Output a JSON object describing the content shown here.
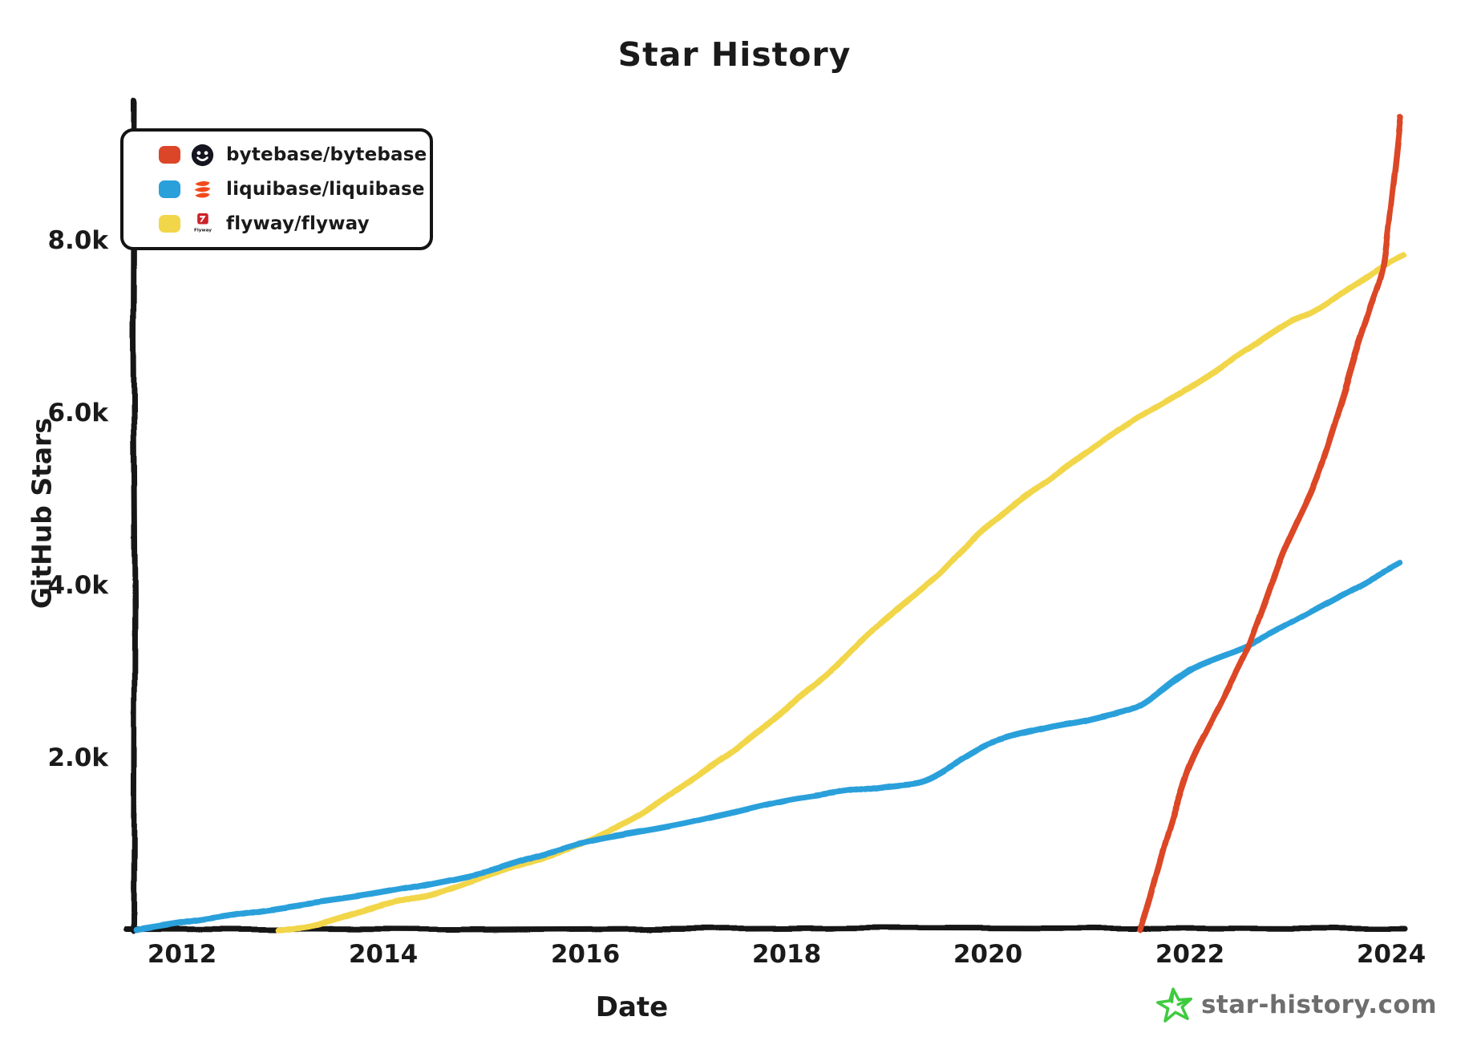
{
  "title": "Star History",
  "y_axis": {
    "label": "GitHub Stars",
    "ticks": [
      "8.0k",
      "6.0k",
      "4.0k",
      "2.0k"
    ],
    "tick_values": [
      8000,
      6000,
      4000,
      2000
    ]
  },
  "x_axis": {
    "label": "Date",
    "ticks": [
      "2012",
      "2014",
      "2016",
      "2018",
      "2020",
      "2022",
      "2024"
    ],
    "tick_values": [
      2012,
      2014,
      2016,
      2018,
      2020,
      2022,
      2024
    ]
  },
  "legend": [
    {
      "repo": "bytebase/bytebase",
      "color": "#dc4628",
      "icon": "bytebase-avatar"
    },
    {
      "repo": "liquibase/liquibase",
      "color": "#2aa0db",
      "icon": "liquibase-logo"
    },
    {
      "repo": "flyway/flyway",
      "color": "#f2d64a",
      "icon": "flyway-logo",
      "caption": "Flyway"
    }
  ],
  "footer": {
    "site": "star-history.com",
    "star_color": "#3ecb3e",
    "text_color": "#6e6e6e"
  },
  "colors": {
    "bytebase": "#dc4628",
    "liquibase": "#2aa0db",
    "flyway": "#f2d64a",
    "axis": "#141414"
  },
  "chart_data": {
    "type": "line",
    "title": "Star History",
    "xlabel": "Date",
    "ylabel": "GitHub Stars",
    "xlim": [
      2011.3,
      2024.25
    ],
    "ylim": [
      0,
      9590
    ],
    "grid": false,
    "legend_position": "top-left",
    "series": [
      {
        "name": "bytebase/bytebase",
        "color": "#dc4628",
        "points": [
          [
            2021.51,
            0
          ],
          [
            2021.6,
            350
          ],
          [
            2021.78,
            1100
          ],
          [
            2022.0,
            1900
          ],
          [
            2022.3,
            2620
          ],
          [
            2022.6,
            3340
          ],
          [
            2022.92,
            4360
          ],
          [
            2023.21,
            5100
          ],
          [
            2023.36,
            5570
          ],
          [
            2023.6,
            6500
          ],
          [
            2023.8,
            7250
          ],
          [
            2023.92,
            7680
          ],
          [
            2024.0,
            8450
          ],
          [
            2024.09,
            9430
          ]
        ]
      },
      {
        "name": "liquibase/liquibase",
        "color": "#2aa0db",
        "points": [
          [
            2011.55,
            0
          ],
          [
            2012,
            85
          ],
          [
            2012.5,
            170
          ],
          [
            2013,
            260
          ],
          [
            2014,
            430
          ],
          [
            2015,
            670
          ],
          [
            2016,
            1010
          ],
          [
            2017,
            1230
          ],
          [
            2018,
            1500
          ],
          [
            2019,
            1670
          ],
          [
            2019.4,
            1750
          ],
          [
            2020,
            2150
          ],
          [
            2020.6,
            2340
          ],
          [
            2021,
            2430
          ],
          [
            2021.5,
            2600
          ],
          [
            2022,
            3020
          ],
          [
            2022.6,
            3310
          ],
          [
            2023.24,
            3710
          ],
          [
            2023.7,
            4000
          ],
          [
            2024.09,
            4250
          ]
        ]
      },
      {
        "name": "flyway/flyway",
        "color": "#f2d64a",
        "points": [
          [
            2012.95,
            0
          ],
          [
            2013.3,
            40
          ],
          [
            2014,
            280
          ],
          [
            2014.5,
            420
          ],
          [
            2015,
            620
          ],
          [
            2015.5,
            800
          ],
          [
            2016,
            1010
          ],
          [
            2016.5,
            1300
          ],
          [
            2017,
            1700
          ],
          [
            2017.5,
            2100
          ],
          [
            2018,
            2570
          ],
          [
            2018.5,
            3080
          ],
          [
            2019,
            3620
          ],
          [
            2019.5,
            4100
          ],
          [
            2020,
            4700
          ],
          [
            2020.7,
            5310
          ],
          [
            2021,
            5570
          ],
          [
            2021.5,
            5950
          ],
          [
            2022,
            6300
          ],
          [
            2022.5,
            6680
          ],
          [
            2023,
            7060
          ],
          [
            2023.24,
            7180
          ],
          [
            2023.9,
            7680
          ],
          [
            2024.12,
            7820
          ]
        ]
      }
    ]
  }
}
